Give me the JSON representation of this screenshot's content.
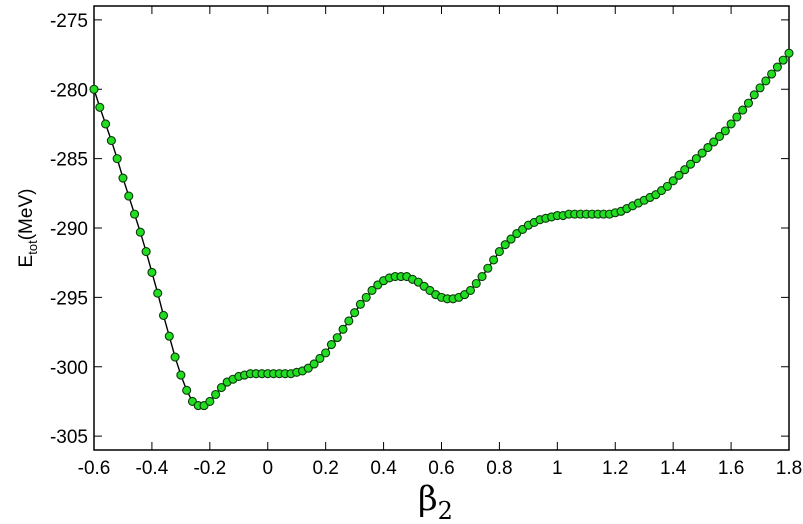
{
  "chart_data": {
    "type": "line",
    "title": "",
    "xlabel": {
      "main": "β",
      "sub": "2"
    },
    "ylabel": {
      "main": "E",
      "sub": "tot",
      "suffix": "(MeV)"
    },
    "xlim": [
      -0.6,
      1.8
    ],
    "ylim": [
      -306,
      -274
    ],
    "xticks": [
      -0.6,
      -0.4,
      -0.2,
      0,
      0.2,
      0.4,
      0.6,
      0.8,
      1,
      1.2,
      1.4,
      1.6,
      1.8
    ],
    "xtick_labels": [
      "-0.6",
      "-0.4",
      "-0.2",
      "0",
      "0.2",
      "0.4",
      "0.6",
      "0.8",
      "1",
      "1.2",
      "1.4",
      "1.6",
      "1.8"
    ],
    "yticks": [
      -305,
      -300,
      -295,
      -290,
      -285,
      -280,
      -275
    ],
    "ytick_labels": [
      "-305",
      "-300",
      "-295",
      "-290",
      "-285",
      "-280",
      "-275"
    ],
    "grid": false,
    "colors": {
      "marker_fill": "#22dd22",
      "marker_edge": "#0a3a0a",
      "line": "#000000",
      "axes": "#000000"
    },
    "series": [
      {
        "marker": "circle",
        "x": [
          -0.6,
          -0.58,
          -0.56,
          -0.54,
          -0.52,
          -0.5,
          -0.48,
          -0.46,
          -0.44,
          -0.42,
          -0.4,
          -0.38,
          -0.36,
          -0.34,
          -0.32,
          -0.3,
          -0.28,
          -0.26,
          -0.24,
          -0.22,
          -0.2,
          -0.18,
          -0.16,
          -0.14,
          -0.12,
          -0.1,
          -0.08,
          -0.06,
          -0.04,
          -0.02,
          0,
          0.02,
          0.04,
          0.06,
          0.08,
          0.1,
          0.12,
          0.14,
          0.16,
          0.18,
          0.2,
          0.22,
          0.24,
          0.26,
          0.28,
          0.3,
          0.32,
          0.34,
          0.36,
          0.38,
          0.4,
          0.42,
          0.44,
          0.46,
          0.48,
          0.5,
          0.52,
          0.54,
          0.56,
          0.58,
          0.6,
          0.62,
          0.64,
          0.66,
          0.68,
          0.7,
          0.72,
          0.74,
          0.76,
          0.78,
          0.8,
          0.82,
          0.84,
          0.86,
          0.88,
          0.9,
          0.92,
          0.94,
          0.96,
          0.98,
          1,
          1.02,
          1.04,
          1.06,
          1.08,
          1.1,
          1.12,
          1.14,
          1.16,
          1.18,
          1.2,
          1.22,
          1.24,
          1.26,
          1.28,
          1.3,
          1.32,
          1.34,
          1.36,
          1.38,
          1.4,
          1.42,
          1.44,
          1.46,
          1.48,
          1.5,
          1.52,
          1.54,
          1.56,
          1.58,
          1.6,
          1.62,
          1.64,
          1.66,
          1.68,
          1.7,
          1.72,
          1.74,
          1.76,
          1.78,
          1.8
        ],
        "y": [
          -280.0,
          -281.3,
          -282.5,
          -283.7,
          -285.0,
          -286.4,
          -287.7,
          -289.0,
          -290.3,
          -291.7,
          -293.2,
          -294.7,
          -296.3,
          -297.8,
          -299.3,
          -300.6,
          -301.7,
          -302.5,
          -302.8,
          -302.8,
          -302.5,
          -302.0,
          -301.5,
          -301.1,
          -300.9,
          -300.7,
          -300.6,
          -300.5,
          -300.5,
          -300.5,
          -300.5,
          -300.5,
          -300.5,
          -300.5,
          -300.5,
          -300.4,
          -300.3,
          -300.1,
          -299.8,
          -299.4,
          -299.0,
          -298.4,
          -297.9,
          -297.3,
          -296.7,
          -296.1,
          -295.5,
          -295.0,
          -294.5,
          -294.1,
          -293.8,
          -293.6,
          -293.5,
          -293.5,
          -293.5,
          -293.7,
          -293.9,
          -294.2,
          -294.5,
          -294.8,
          -295.0,
          -295.1,
          -295.1,
          -295.0,
          -294.8,
          -294.5,
          -294.0,
          -293.5,
          -292.9,
          -292.3,
          -291.7,
          -291.2,
          -290.8,
          -290.4,
          -290.1,
          -289.8,
          -289.6,
          -289.4,
          -289.3,
          -289.2,
          -289.1,
          -289.1,
          -289.0,
          -289.0,
          -289.0,
          -289.0,
          -289.0,
          -289.0,
          -289.0,
          -289.0,
          -288.9,
          -288.8,
          -288.6,
          -288.4,
          -288.2,
          -288.0,
          -287.8,
          -287.6,
          -287.3,
          -287.0,
          -286.6,
          -286.2,
          -285.8,
          -285.4,
          -285.0,
          -284.6,
          -284.2,
          -283.8,
          -283.4,
          -283.0,
          -282.5,
          -282.0,
          -281.5,
          -281.0,
          -280.4,
          -279.9,
          -279.4,
          -278.9,
          -278.4,
          -277.9,
          -277.4
        ]
      }
    ]
  }
}
